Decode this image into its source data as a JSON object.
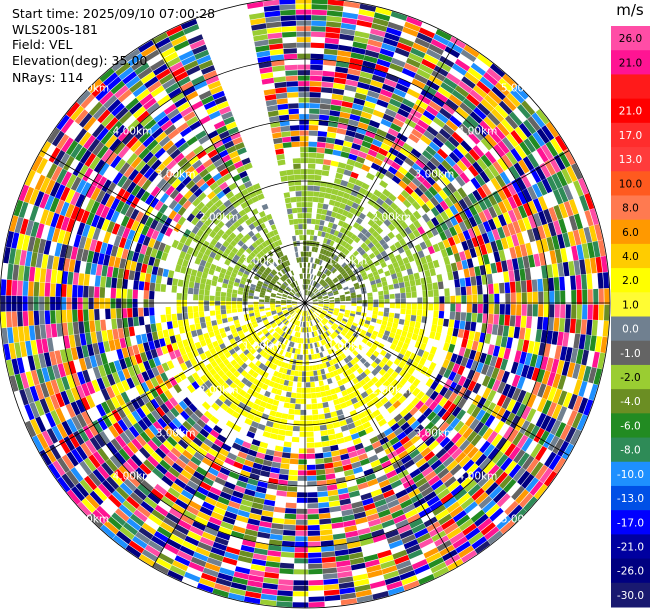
{
  "info": {
    "start_time": "Start time: 2025/09/10 07:00:28",
    "instrument": "WLS200s-181",
    "field": "Field: VEL",
    "elevation": "Elevation(deg): 35.00",
    "nrays": "NRays: 114"
  },
  "colorbar": {
    "unit": "m/s",
    "levels": [
      {
        "label": "26.0",
        "color": "#ff4da6"
      },
      {
        "label": "21.0",
        "color": "#ff1493"
      },
      {
        "label": "",
        "color": "#ff1a1a"
      },
      {
        "label": "21.0",
        "color": "#ff0000"
      },
      {
        "label": "17.0",
        "color": "#ff2d2d"
      },
      {
        "label": "13.0",
        "color": "#ff3b3b"
      },
      {
        "label": "10.0",
        "color": "#ff5a1f"
      },
      {
        "label": "8.0",
        "color": "#ff7a50"
      },
      {
        "label": "6.0",
        "color": "#ff9900"
      },
      {
        "label": "4.0",
        "color": "#ffcc00"
      },
      {
        "label": "2.0",
        "color": "#ffff00"
      },
      {
        "label": "1.0",
        "color": "#fffc33"
      },
      {
        "label": "0.0",
        "color": "#708090"
      },
      {
        "label": "-1.0",
        "color": "#646464"
      },
      {
        "label": "-2.0",
        "color": "#9acd32"
      },
      {
        "label": "-4.0",
        "color": "#6b8e23"
      },
      {
        "label": "-6.0",
        "color": "#228b22"
      },
      {
        "label": "-8.0",
        "color": "#2e8b57"
      },
      {
        "label": "-10.0",
        "color": "#1e90ff"
      },
      {
        "label": "-13.0",
        "color": "#0050e6"
      },
      {
        "label": "-17.0",
        "color": "#0000ff"
      },
      {
        "label": "-21.0",
        "color": "#0000a0"
      },
      {
        "label": "-26.0",
        "color": "#000080"
      },
      {
        "label": "-30.0",
        "color": "#191970"
      }
    ]
  },
  "chart_data": {
    "type": "heatmap",
    "subtype": "polar PPI scan",
    "field": "VEL",
    "unit": "m/s",
    "elevation_deg": 35.0,
    "n_rays": 114,
    "gap_azimuth_deg": [
      339,
      349
    ],
    "range_ring_labels": [
      "1.00km",
      "2.00km",
      "3.00km",
      "4.00km",
      "5.00km"
    ],
    "color_levels": [
      -30.0,
      -26.0,
      -21.0,
      -17.0,
      -13.0,
      -10.0,
      -8.0,
      -6.0,
      -4.0,
      -2.0,
      -1.0,
      0.0,
      1.0,
      2.0,
      4.0,
      6.0,
      8.0,
      10.0,
      13.0,
      17.0,
      21.0,
      26.0
    ],
    "inner_region_description_values": {
      "near_center_north": -4.0,
      "inner_ring_north_half": -2.0,
      "inner_ring_south_half": 2.0,
      "outer_region": "noisy"
    }
  }
}
